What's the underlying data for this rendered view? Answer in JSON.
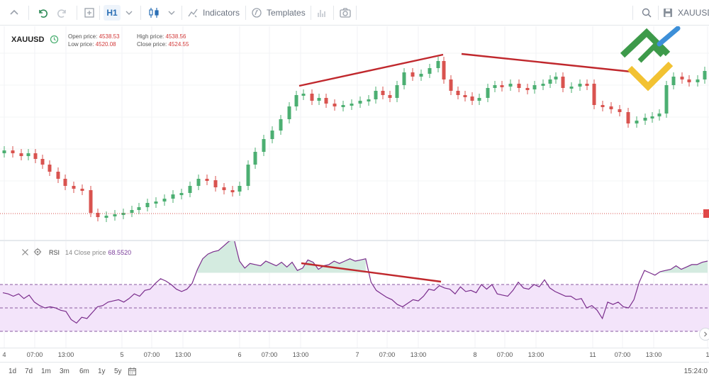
{
  "toolbar": {
    "indicators_label": "Indicators",
    "templates_label": "Templates",
    "timeframe": "H1",
    "symbol_label": "XAUUSD"
  },
  "legend": {
    "symbol": "XAUUSD",
    "open_label": "Open price:",
    "open_value": "4538.53",
    "low_label": "Low price:",
    "low_value": "4520.08",
    "high_label": "High price:",
    "high_value": "4538.56",
    "close_label": "Close price:",
    "close_value": "4524.55"
  },
  "rsi": {
    "name": "RSI",
    "params": "14 Close price",
    "value": "68.5520"
  },
  "xaxis_ticks": [
    {
      "label": "4"
    },
    {
      "label": "07:00"
    },
    {
      "label": "13:00"
    },
    {
      "label": "5"
    },
    {
      "label": "07:00"
    },
    {
      "label": "13:00"
    },
    {
      "label": "6"
    },
    {
      "label": "07:00"
    },
    {
      "label": "13:00"
    },
    {
      "label": "7"
    },
    {
      "label": "07:00"
    },
    {
      "label": "13:00"
    },
    {
      "label": "8"
    },
    {
      "label": "07:00"
    },
    {
      "label": "13:00"
    },
    {
      "label": "11"
    },
    {
      "label": "07:00"
    },
    {
      "label": "13:00"
    },
    {
      "label": "1"
    }
  ],
  "timeframes": [
    "1d",
    "7d",
    "1m",
    "3m",
    "6m",
    "1y",
    "5y"
  ],
  "clock": "15:24:0",
  "colors": {
    "bull": "#4caf72",
    "bear": "#d9534f",
    "trendline": "#c0282d",
    "rsi_line": "#7a2d8c",
    "rsi_band": "#f3e4fa",
    "accent": "#2a6fb5"
  },
  "chart_data": {
    "type": "line",
    "series": [
      {
        "name": "RSI",
        "y": [
          53,
          52,
          50,
          52,
          48,
          51,
          45,
          42,
          40,
          41,
          40,
          38,
          37,
          30,
          27,
          32,
          31,
          36,
          41,
          42,
          45,
          46,
          47,
          45,
          48,
          52,
          50,
          55,
          56,
          61,
          65,
          63,
          60,
          56,
          54,
          56,
          61,
          73,
          82,
          86,
          88,
          89,
          93,
          97,
          98,
          80,
          74,
          78,
          77,
          76,
          80,
          78,
          76,
          79,
          75,
          79,
          72,
          74,
          81,
          79,
          73,
          76,
          77,
          80,
          78,
          80,
          82,
          80,
          81,
          82,
          62,
          55,
          52,
          49,
          47,
          43,
          41,
          44,
          47,
          46,
          50,
          56,
          55,
          59,
          57,
          56,
          52,
          58,
          54,
          55,
          53,
          60,
          56,
          60,
          52,
          51,
          50,
          55,
          62,
          57,
          56,
          60,
          58,
          64,
          57,
          54,
          52,
          50,
          50,
          47,
          48,
          40,
          42,
          38,
          31,
          45,
          43,
          45,
          41,
          40,
          47,
          62,
          72,
          70,
          68,
          71,
          72,
          73,
          76,
          73,
          75,
          77,
          77,
          79,
          80
        ]
      }
    ],
    "ylim": [
      0,
      100
    ],
    "bands": [
      30,
      50,
      70
    ]
  }
}
